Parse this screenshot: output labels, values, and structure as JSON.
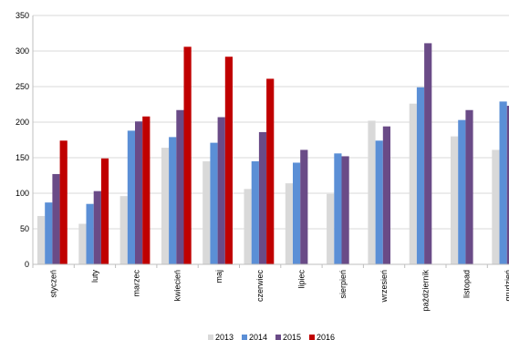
{
  "chart_data": {
    "type": "bar",
    "categories": [
      "styczeń",
      "luty",
      "marzec",
      "kwiecień",
      "maj",
      "czerwiec",
      "lipiec",
      "sierpień",
      "wrzesień",
      "październik",
      "listopad",
      "grudzień"
    ],
    "series": [
      {
        "name": "2013",
        "color": "#d9d9d9",
        "values": [
          68,
          57,
          96,
          164,
          145,
          106,
          114,
          99,
          202,
          226,
          180,
          161
        ]
      },
      {
        "name": "2014",
        "color": "#5b8fd6",
        "values": [
          87,
          85,
          188,
          179,
          171,
          145,
          143,
          156,
          174,
          249,
          203,
          229
        ]
      },
      {
        "name": "2015",
        "color": "#6a4b87",
        "values": [
          127,
          103,
          201,
          217,
          207,
          186,
          161,
          152,
          194,
          311,
          217,
          223
        ]
      },
      {
        "name": "2016",
        "color": "#c00000",
        "values": [
          174,
          149,
          208,
          306,
          292,
          261,
          null,
          null,
          null,
          null,
          null,
          null
        ]
      }
    ],
    "yticks": [
      0,
      50,
      100,
      150,
      200,
      250,
      300,
      350
    ],
    "ylim": [
      0,
      350
    ],
    "grid": true,
    "legend_position": "bottom",
    "title": "",
    "xlabel": "",
    "ylabel": ""
  }
}
